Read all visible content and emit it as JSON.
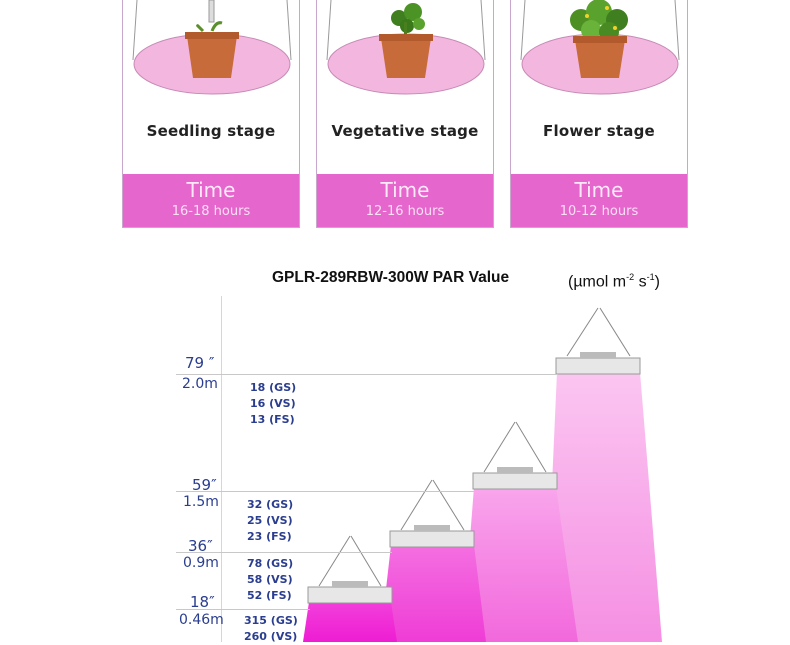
{
  "stages": [
    {
      "label": "Seedling stage",
      "time_title": "Time",
      "time_hours": "16-18 hours"
    },
    {
      "label": "Vegetative stage",
      "time_title": "Time",
      "time_hours": "12-16 hours"
    },
    {
      "label": "Flower stage",
      "time_title": "Time",
      "time_hours": "10-12 hours"
    }
  ],
  "chart": {
    "title": "GPLR-289RBW-300W  PAR Value",
    "unit_main": "(µmol m",
    "unit_sup1": "-2",
    "unit_mid": " s",
    "unit_sup2": "-1",
    "unit_end": ")"
  },
  "levels": [
    {
      "inch": "79 ″",
      "meter": "2.0m",
      "par": [
        "18 (GS)",
        "16 (VS)",
        "13 (FS)"
      ]
    },
    {
      "inch": "59″",
      "meter": "1.5m",
      "par": [
        "32 (GS)",
        "25 (VS)",
        "23 (FS)"
      ]
    },
    {
      "inch": "36″",
      "meter": "0.9m",
      "par": [
        "78 (GS)",
        "58 (VS)",
        "52 (FS)"
      ]
    },
    {
      "inch": "18″",
      "meter": "0.46m",
      "par": [
        "315 (GS)",
        "260 (VS)"
      ]
    }
  ],
  "colors": {
    "time_box": "#e566cd",
    "axis_text": "#2a3d8f",
    "beam_light": "#f7a9ea",
    "beam_dark": "#f22bd9"
  }
}
